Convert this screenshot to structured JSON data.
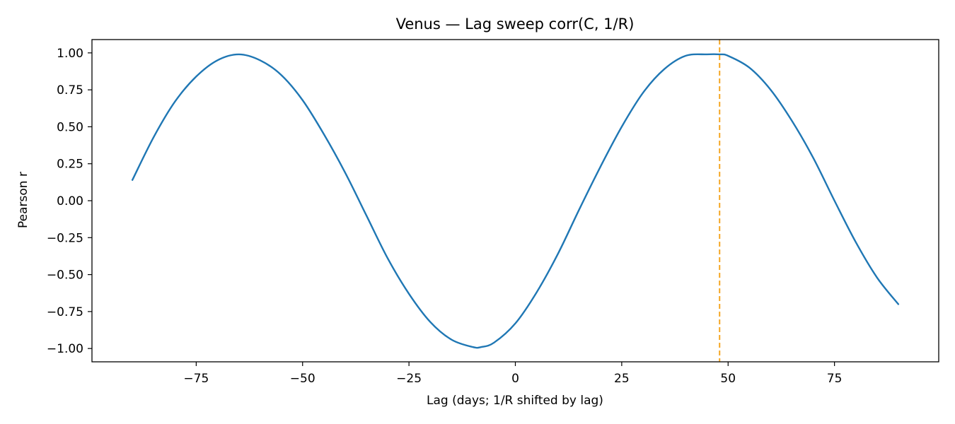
{
  "chart_data": {
    "type": "line",
    "title": "Venus — Lag sweep corr(C, 1/R)",
    "xlabel": "Lag (days; 1/R shifted by lag)",
    "ylabel": "Pearson r",
    "xlim": [
      -99.5,
      99.5
    ],
    "ylim": [
      -1.09,
      1.09
    ],
    "x_ticks": [
      -75,
      -50,
      -25,
      0,
      25,
      50,
      75
    ],
    "x_tick_labels": [
      "−75",
      "−50",
      "−25",
      "0",
      "25",
      "50",
      "75"
    ],
    "y_ticks": [
      1.0,
      0.75,
      0.5,
      0.25,
      0.0,
      -0.25,
      -0.5,
      -0.75,
      -1.0
    ],
    "y_tick_labels": [
      "1.00",
      "0.75",
      "0.50",
      "0.25",
      "0.00",
      "−0.25",
      "−0.50",
      "−0.75",
      "−1.00"
    ],
    "grid": false,
    "series": [
      {
        "color": "#1f77b4",
        "x": [
          -90,
          -85,
          -80,
          -75,
          -70,
          -65,
          -60,
          -55,
          -50,
          -45,
          -40,
          -35,
          -30,
          -25,
          -20,
          -15,
          -10,
          -8,
          -5,
          0,
          5,
          10,
          15,
          20,
          25,
          30,
          35,
          40,
          45,
          48,
          50,
          55,
          60,
          65,
          70,
          75,
          80,
          85,
          90
        ],
        "y": [
          0.14,
          0.43,
          0.67,
          0.84,
          0.95,
          0.99,
          0.95,
          0.85,
          0.68,
          0.45,
          0.19,
          -0.1,
          -0.39,
          -0.63,
          -0.82,
          -0.94,
          -0.99,
          -0.99,
          -0.96,
          -0.83,
          -0.62,
          -0.36,
          -0.06,
          0.23,
          0.5,
          0.73,
          0.89,
          0.98,
          0.99,
          0.99,
          0.98,
          0.9,
          0.75,
          0.54,
          0.29,
          0.0,
          -0.28,
          -0.52,
          -0.7
        ]
      }
    ],
    "vlines": [
      {
        "x": 48,
        "color": "#f5a623",
        "style": "dashed"
      }
    ]
  }
}
